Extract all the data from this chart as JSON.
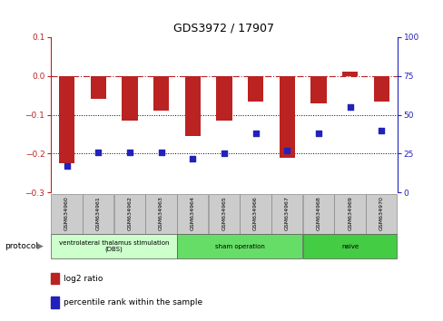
{
  "title": "GDS3972 / 17907",
  "samples": [
    "GSM634960",
    "GSM634961",
    "GSM634962",
    "GSM634963",
    "GSM634964",
    "GSM634965",
    "GSM634966",
    "GSM634967",
    "GSM634968",
    "GSM634969",
    "GSM634970"
  ],
  "log2_ratio": [
    -0.225,
    -0.06,
    -0.115,
    -0.09,
    -0.155,
    -0.115,
    -0.065,
    -0.21,
    -0.07,
    0.01,
    -0.065
  ],
  "pct_rank": [
    17,
    26,
    26,
    26,
    22,
    25,
    38,
    27,
    38,
    55,
    40
  ],
  "ylim_left": [
    -0.3,
    0.1
  ],
  "ylim_right": [
    0,
    100
  ],
  "yticks_left": [
    -0.3,
    -0.2,
    -0.1,
    0.0,
    0.1
  ],
  "yticks_right": [
    0,
    25,
    50,
    75,
    100
  ],
  "bar_color": "#BB2222",
  "dot_color": "#2222BB",
  "dotted_line_color": "#000000",
  "dashed_line_color": "#BB2222",
  "protocol_groups": [
    {
      "label": "ventrolateral thalamus stimulation\n(DBS)",
      "start": 0,
      "end": 3,
      "color": "#ccffcc"
    },
    {
      "label": "sham operation",
      "start": 4,
      "end": 7,
      "color": "#66dd66"
    },
    {
      "label": "naive",
      "start": 8,
      "end": 10,
      "color": "#44cc44"
    }
  ],
  "legend_items": [
    {
      "label": "log2 ratio",
      "color": "#BB2222"
    },
    {
      "label": "percentile rank within the sample",
      "color": "#2222BB"
    }
  ],
  "sample_box_color": "#cccccc",
  "sample_box_edge": "#888888"
}
